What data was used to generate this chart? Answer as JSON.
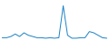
{
  "x": [
    0,
    1,
    2,
    3,
    4,
    5,
    6,
    7,
    8,
    9,
    10,
    11,
    12,
    13,
    14,
    15,
    16,
    17,
    18,
    19,
    20,
    21,
    22,
    23,
    24
  ],
  "y": [
    1.0,
    1.0,
    1.5,
    2.5,
    1.5,
    3.0,
    2.0,
    1.5,
    1.0,
    1.0,
    0.8,
    1.0,
    0.8,
    1.0,
    14.0,
    2.0,
    0.8,
    0.8,
    1.0,
    1.0,
    3.5,
    3.0,
    2.0,
    1.0,
    0.8
  ],
  "line_color": "#1b82c5",
  "background_color": "#ffffff",
  "ylim": [
    0,
    16
  ],
  "xlim": [
    0,
    24
  ]
}
